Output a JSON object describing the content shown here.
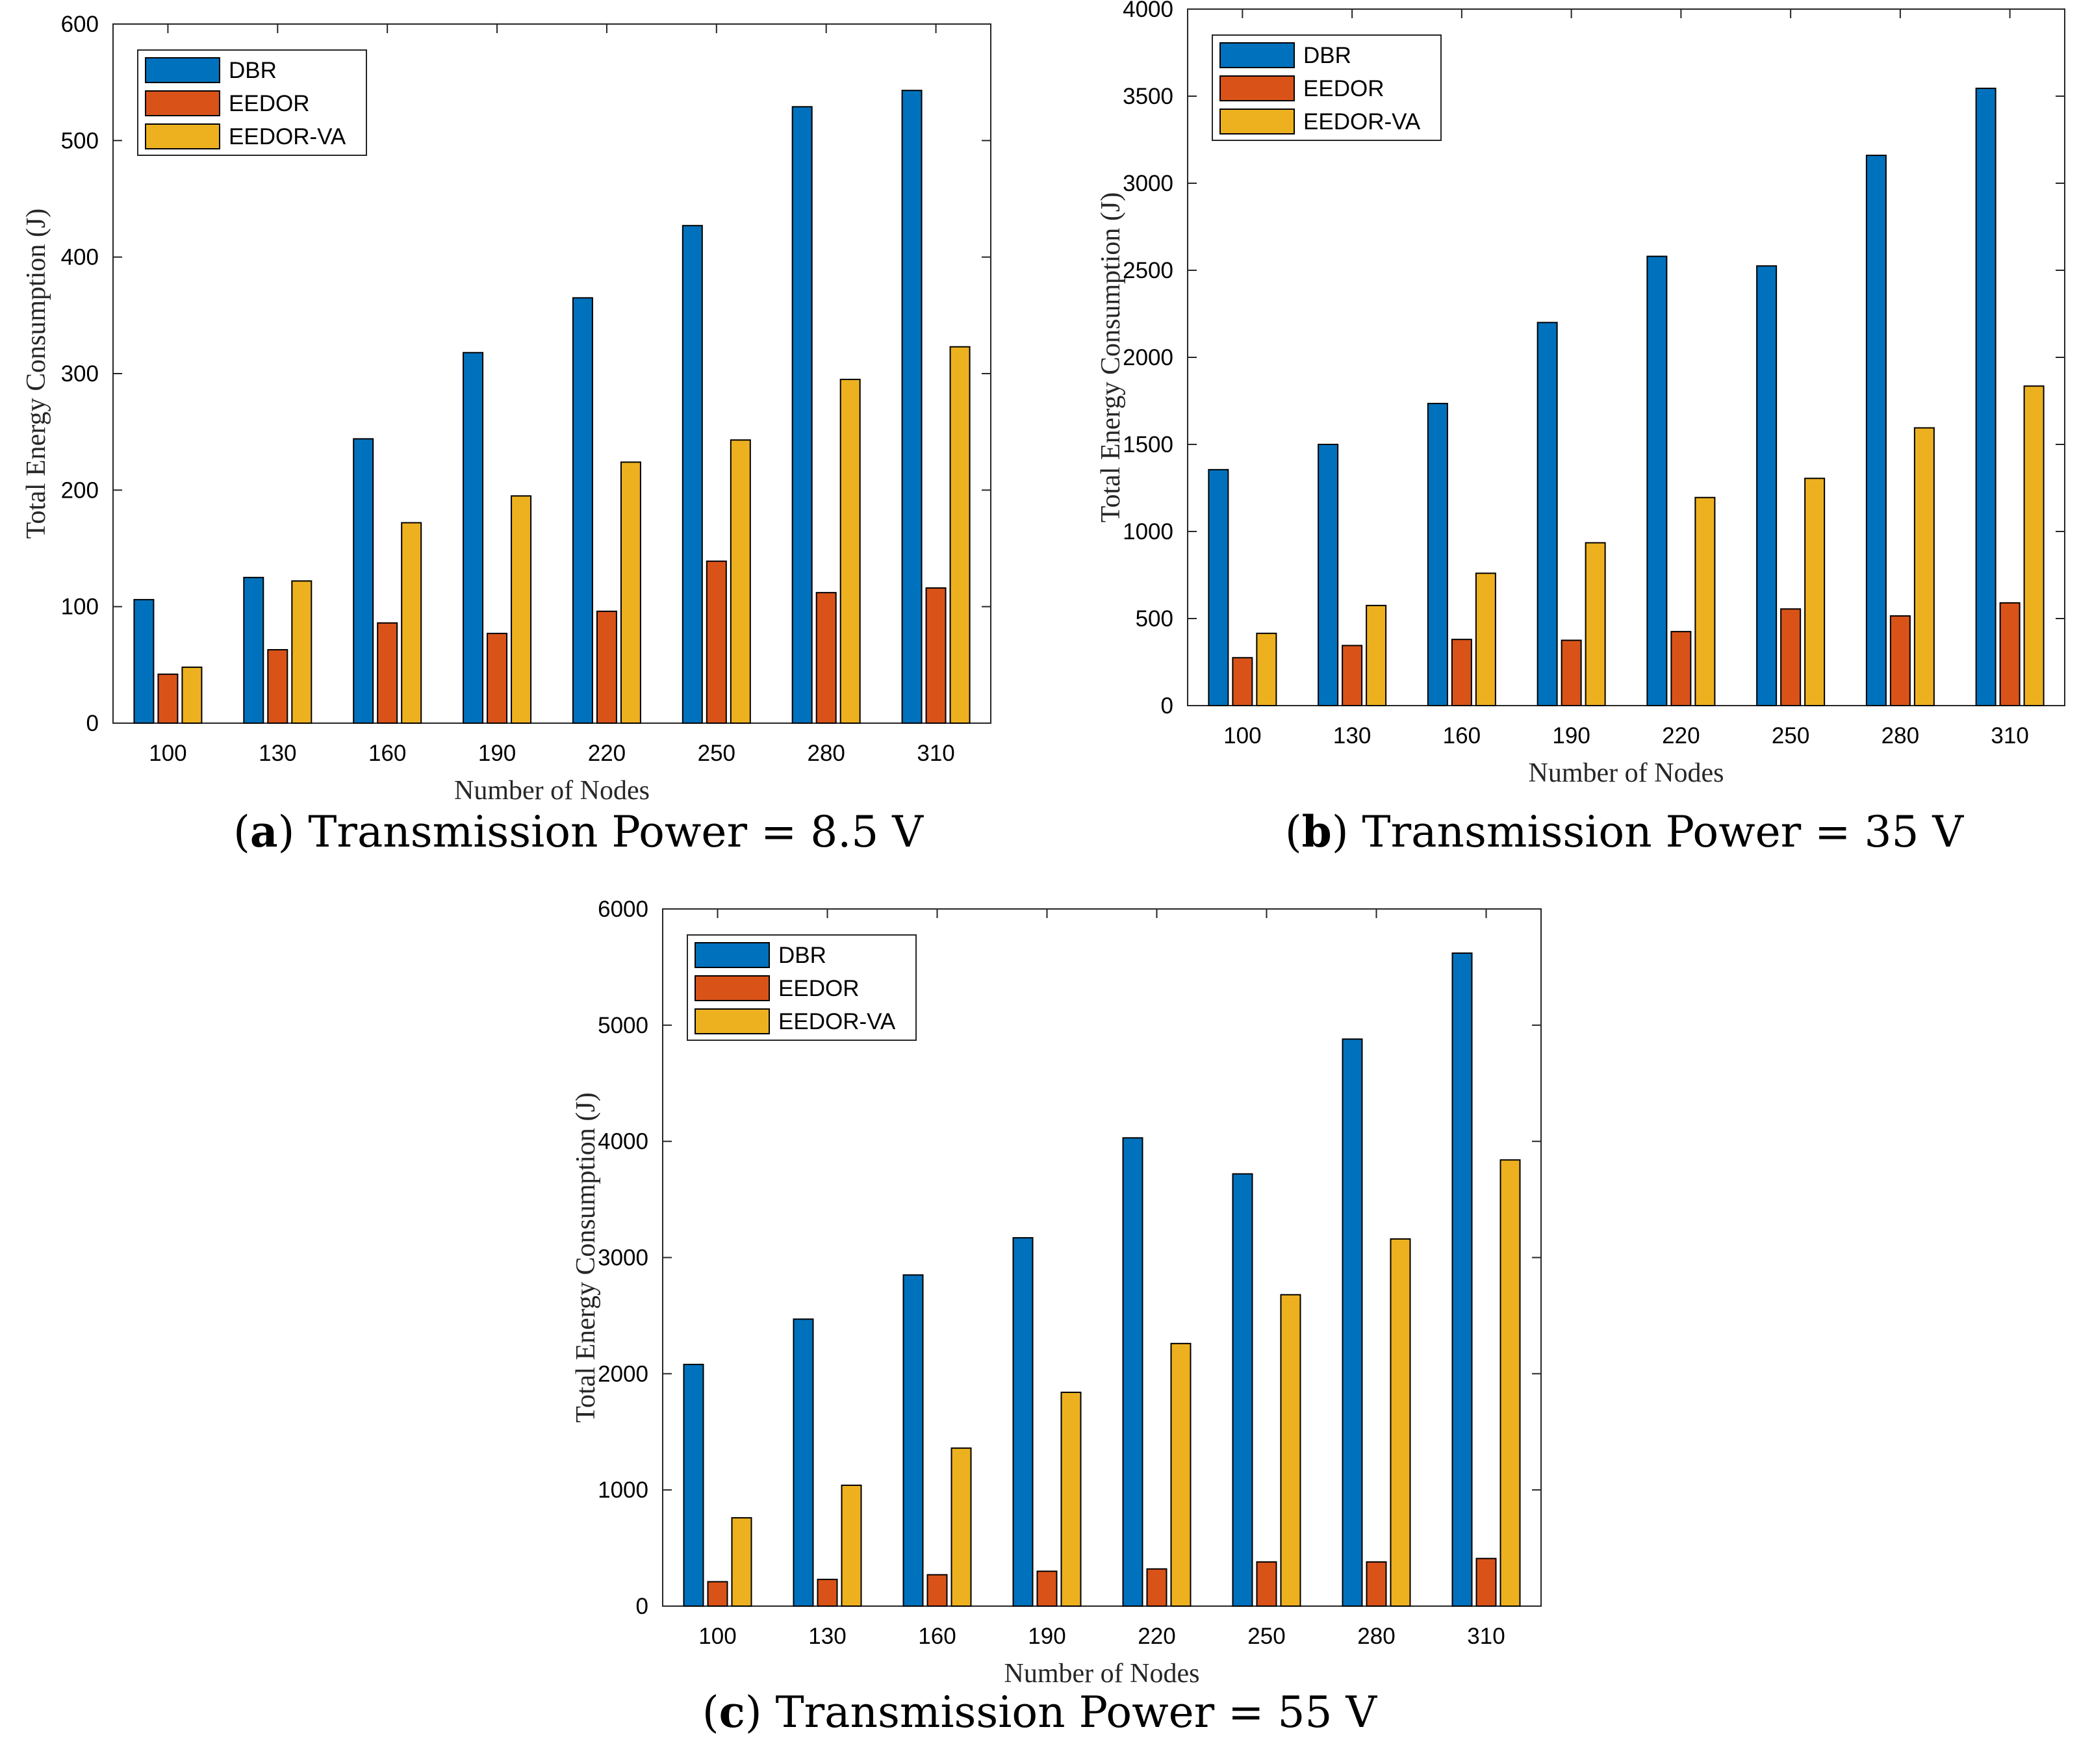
{
  "legend_labels": [
    "DBR",
    "EEDOR",
    "EEDOR-VA"
  ],
  "colors": {
    "DBR": "#0072BD",
    "EEDOR": "#D95319",
    "EEDOR-VA": "#EDB120"
  },
  "chart_data": [
    {
      "id": "a",
      "type": "bar",
      "caption_letter": "a",
      "caption_text": " Transmission Power = 8.5 V",
      "xlabel": "Number of Nodes",
      "ylabel": "Total Energy Consumption (J)",
      "categories": [
        "100",
        "130",
        "160",
        "190",
        "220",
        "250",
        "280",
        "310"
      ],
      "ylim": [
        0,
        600
      ],
      "yticks": [
        0,
        100,
        200,
        300,
        400,
        500,
        600
      ],
      "legend_position": "top-left",
      "series": [
        {
          "name": "DBR",
          "values": [
            106,
            125,
            244,
            318,
            365,
            427,
            529,
            543
          ]
        },
        {
          "name": "EEDOR",
          "values": [
            42,
            63,
            86,
            77,
            96,
            139,
            112,
            116
          ]
        },
        {
          "name": "EEDOR-VA",
          "values": [
            48,
            122,
            172,
            195,
            224,
            243,
            295,
            323
          ]
        }
      ]
    },
    {
      "id": "b",
      "type": "bar",
      "caption_letter": "b",
      "caption_text": " Transmission Power = 35 V",
      "xlabel": "Number of Nodes",
      "ylabel": "Total Energy Consumption (J)",
      "categories": [
        "100",
        "130",
        "160",
        "190",
        "220",
        "250",
        "280",
        "310"
      ],
      "ylim": [
        0,
        4000
      ],
      "yticks": [
        0,
        500,
        1000,
        1500,
        2000,
        2500,
        3000,
        3500,
        4000
      ],
      "legend_position": "top-left",
      "series": [
        {
          "name": "DBR",
          "values": [
            1355,
            1500,
            1735,
            2200,
            2580,
            2525,
            3160,
            3545
          ]
        },
        {
          "name": "EEDOR",
          "values": [
            275,
            345,
            380,
            375,
            425,
            555,
            515,
            590
          ]
        },
        {
          "name": "EEDOR-VA",
          "values": [
            415,
            575,
            760,
            935,
            1195,
            1305,
            1595,
            1835
          ]
        }
      ]
    },
    {
      "id": "c",
      "type": "bar",
      "caption_letter": "c",
      "caption_text": " Transmission Power = 55 V",
      "xlabel": "Number of Nodes",
      "ylabel": "Total Energy Consumption (J)",
      "categories": [
        "100",
        "130",
        "160",
        "190",
        "220",
        "250",
        "280",
        "310"
      ],
      "ylim": [
        0,
        6000
      ],
      "yticks": [
        0,
        1000,
        2000,
        3000,
        4000,
        5000,
        6000
      ],
      "legend_position": "top-left",
      "series": [
        {
          "name": "DBR",
          "values": [
            2080,
            2470,
            2850,
            3170,
            4030,
            3720,
            4880,
            5620
          ]
        },
        {
          "name": "EEDOR",
          "values": [
            210,
            230,
            270,
            300,
            320,
            380,
            380,
            410
          ]
        },
        {
          "name": "EEDOR-VA",
          "values": [
            760,
            1040,
            1360,
            1840,
            2260,
            2680,
            3160,
            3840
          ]
        }
      ]
    }
  ]
}
